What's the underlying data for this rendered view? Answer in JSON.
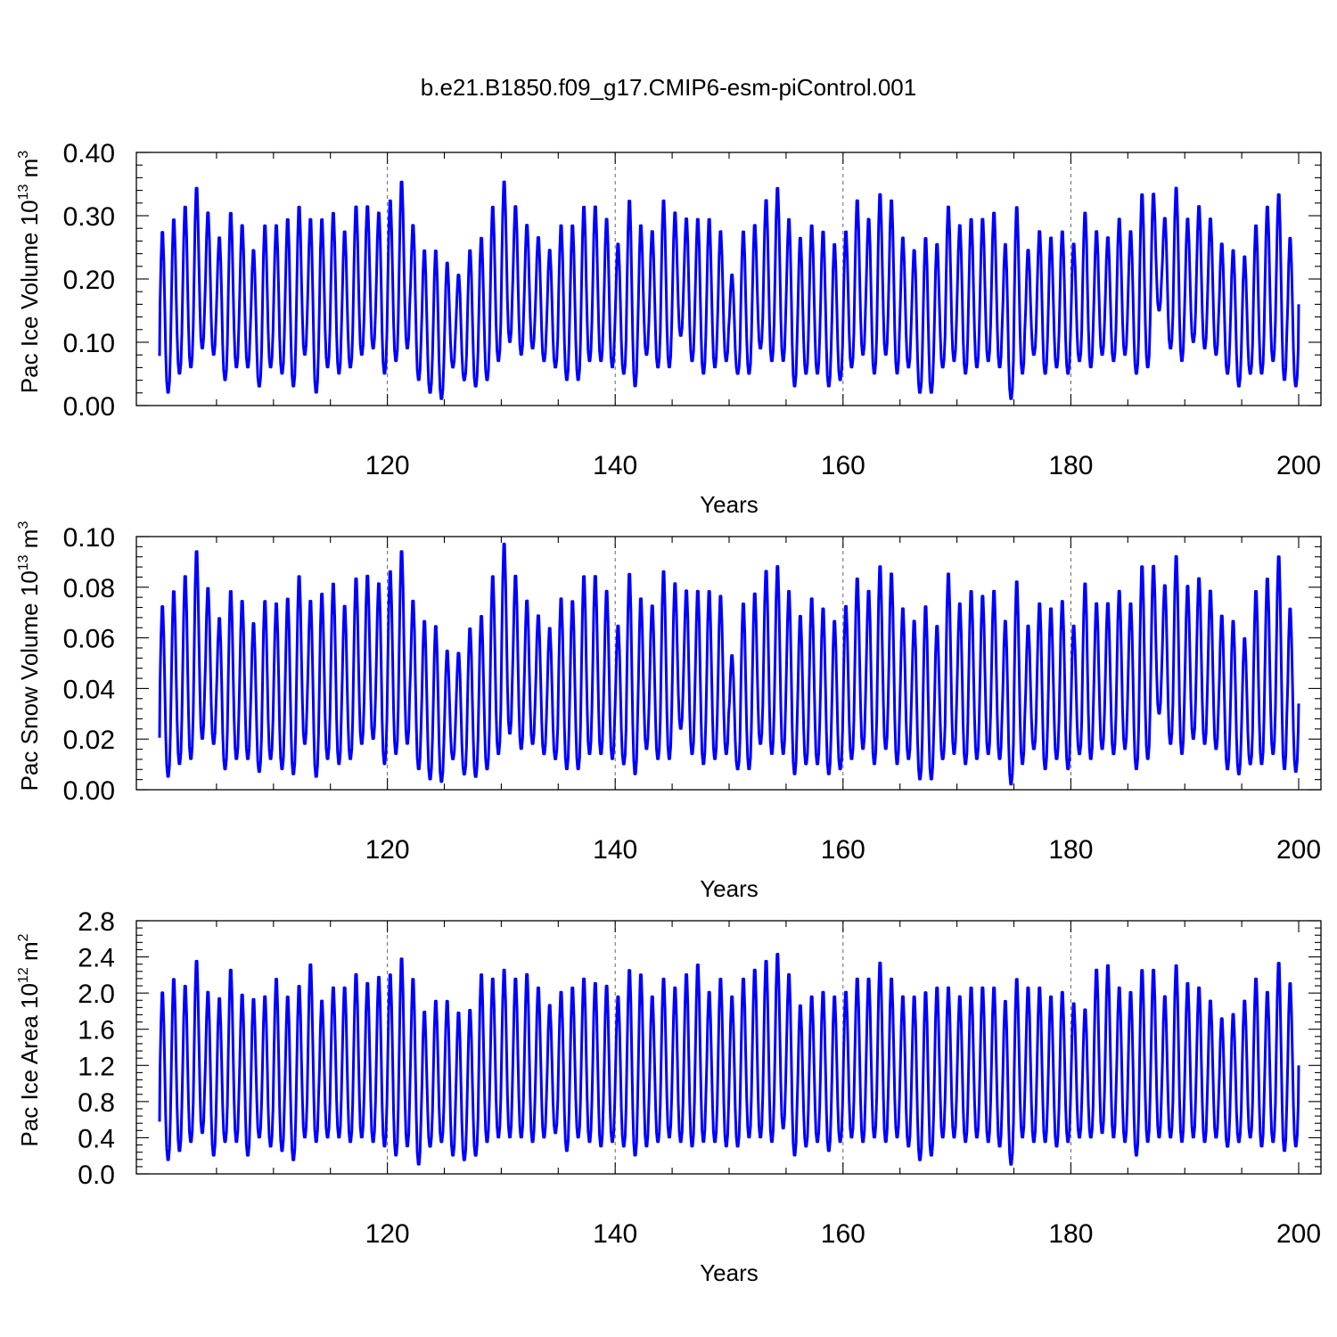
{
  "title": "b.e21.B1850.f09_g17.CMIP6-esm-piControl.001",
  "colors": {
    "series": "#0000ff",
    "grid": "#666666",
    "axis": "#000000"
  },
  "chart_data": [
    {
      "type": "line",
      "ylabel": {
        "prefix": "Pac Ice Volume 10",
        "exp": "13",
        "unit": " m",
        "unit_exp": "3"
      },
      "xlabel": "Years",
      "xlim": [
        100,
        200
      ],
      "ylim": [
        0,
        0.4
      ],
      "yticks": [
        "0.00",
        "0.10",
        "0.20",
        "0.30",
        "0.40"
      ],
      "ytick_values": [
        0,
        0.1,
        0.2,
        0.3,
        0.4
      ],
      "xticks": [
        "120",
        "140",
        "160",
        "180",
        "200"
      ],
      "xtick_values": [
        120,
        140,
        160,
        180,
        200
      ],
      "grid": "dashed vertical at x ticks",
      "series": [
        {
          "x_start": 100,
          "x_end": 200,
          "cycle": "annual",
          "annual_max": [
            0.28,
            0.3,
            0.32,
            0.35,
            0.31,
            0.27,
            0.31,
            0.29,
            0.25,
            0.29,
            0.29,
            0.3,
            0.32,
            0.3,
            0.3,
            0.31,
            0.28,
            0.32,
            0.32,
            0.31,
            0.33,
            0.36,
            0.29,
            0.25,
            0.25,
            0.23,
            0.21,
            0.25,
            0.27,
            0.32,
            0.36,
            0.32,
            0.29,
            0.27,
            0.25,
            0.29,
            0.29,
            0.32,
            0.32,
            0.3,
            0.26,
            0.33,
            0.29,
            0.28,
            0.33,
            0.31,
            0.3,
            0.3,
            0.3,
            0.28,
            0.21,
            0.28,
            0.29,
            0.33,
            0.35,
            0.3,
            0.27,
            0.29,
            0.28,
            0.26,
            0.28,
            0.33,
            0.3,
            0.34,
            0.33,
            0.27,
            0.25,
            0.27,
            0.26,
            0.32,
            0.29,
            0.3,
            0.3,
            0.31,
            0.26,
            0.32,
            0.25,
            0.28,
            0.27,
            0.28,
            0.26,
            0.31,
            0.28,
            0.27,
            0.3,
            0.28,
            0.34,
            0.34,
            0.3,
            0.35,
            0.3,
            0.32,
            0.3,
            0.26,
            0.25,
            0.24,
            0.29,
            0.32,
            0.34,
            0.27
          ],
          "annual_min": [
            0.02,
            0.05,
            0.06,
            0.09,
            0.08,
            0.04,
            0.06,
            0.06,
            0.03,
            0.06,
            0.05,
            0.03,
            0.08,
            0.02,
            0.06,
            0.05,
            0.06,
            0.08,
            0.09,
            0.05,
            0.07,
            0.09,
            0.04,
            0.02,
            0.01,
            0.06,
            0.04,
            0.03,
            0.04,
            0.07,
            0.1,
            0.08,
            0.09,
            0.07,
            0.06,
            0.04,
            0.04,
            0.07,
            0.07,
            0.06,
            0.05,
            0.03,
            0.08,
            0.06,
            0.06,
            0.11,
            0.07,
            0.05,
            0.06,
            0.07,
            0.05,
            0.05,
            0.09,
            0.07,
            0.07,
            0.03,
            0.05,
            0.05,
            0.03,
            0.04,
            0.06,
            0.08,
            0.05,
            0.08,
            0.05,
            0.06,
            0.02,
            0.02,
            0.06,
            0.07,
            0.05,
            0.06,
            0.07,
            0.06,
            0.01,
            0.05,
            0.08,
            0.05,
            0.06,
            0.05,
            0.07,
            0.06,
            0.08,
            0.07,
            0.08,
            0.05,
            0.06,
            0.15,
            0.09,
            0.07,
            0.1,
            0.09,
            0.08,
            0.05,
            0.03,
            0.05,
            0.05,
            0.07,
            0.04,
            0.03
          ],
          "end_value": 0.16
        }
      ]
    },
    {
      "type": "line",
      "ylabel": {
        "prefix": "Pac Snow Volume 10",
        "exp": "13",
        "unit": " m",
        "unit_exp": "3"
      },
      "xlabel": "Years",
      "xlim": [
        100,
        200
      ],
      "ylim": [
        0,
        0.1
      ],
      "yticks": [
        "0.00",
        "0.02",
        "0.04",
        "0.06",
        "0.08",
        "0.10"
      ],
      "ytick_values": [
        0,
        0.02,
        0.04,
        0.06,
        0.08,
        0.1
      ],
      "xticks": [
        "120",
        "140",
        "160",
        "180",
        "200"
      ],
      "xtick_values": [
        120,
        140,
        160,
        180,
        200
      ],
      "grid": "dashed vertical at x ticks",
      "series": [
        {
          "x_start": 100,
          "x_end": 200,
          "cycle": "annual",
          "annual_max": [
            0.074,
            0.08,
            0.086,
            0.096,
            0.081,
            0.069,
            0.08,
            0.076,
            0.067,
            0.076,
            0.075,
            0.077,
            0.086,
            0.076,
            0.079,
            0.083,
            0.074,
            0.085,
            0.086,
            0.083,
            0.088,
            0.096,
            0.076,
            0.068,
            0.066,
            0.056,
            0.055,
            0.065,
            0.07,
            0.086,
            0.099,
            0.086,
            0.076,
            0.07,
            0.065,
            0.077,
            0.076,
            0.086,
            0.086,
            0.08,
            0.066,
            0.087,
            0.077,
            0.074,
            0.088,
            0.083,
            0.08,
            0.08,
            0.08,
            0.078,
            0.054,
            0.075,
            0.079,
            0.088,
            0.09,
            0.08,
            0.07,
            0.077,
            0.073,
            0.068,
            0.074,
            0.085,
            0.08,
            0.09,
            0.087,
            0.073,
            0.068,
            0.074,
            0.066,
            0.087,
            0.075,
            0.08,
            0.078,
            0.08,
            0.068,
            0.084,
            0.066,
            0.075,
            0.073,
            0.076,
            0.066,
            0.083,
            0.075,
            0.075,
            0.08,
            0.075,
            0.09,
            0.09,
            0.082,
            0.094,
            0.082,
            0.085,
            0.08,
            0.07,
            0.068,
            0.061,
            0.08,
            0.085,
            0.094,
            0.073
          ],
          "annual_min": [
            0.005,
            0.01,
            0.012,
            0.02,
            0.018,
            0.008,
            0.012,
            0.012,
            0.007,
            0.012,
            0.008,
            0.006,
            0.018,
            0.005,
            0.012,
            0.01,
            0.012,
            0.018,
            0.02,
            0.01,
            0.014,
            0.018,
            0.008,
            0.004,
            0.003,
            0.012,
            0.006,
            0.005,
            0.008,
            0.014,
            0.022,
            0.016,
            0.018,
            0.014,
            0.012,
            0.008,
            0.008,
            0.014,
            0.014,
            0.012,
            0.01,
            0.006,
            0.016,
            0.012,
            0.012,
            0.024,
            0.014,
            0.01,
            0.012,
            0.014,
            0.008,
            0.008,
            0.018,
            0.014,
            0.014,
            0.006,
            0.01,
            0.01,
            0.006,
            0.008,
            0.012,
            0.016,
            0.01,
            0.016,
            0.01,
            0.012,
            0.004,
            0.004,
            0.012,
            0.014,
            0.01,
            0.012,
            0.014,
            0.012,
            0.002,
            0.01,
            0.016,
            0.008,
            0.012,
            0.008,
            0.014,
            0.012,
            0.016,
            0.014,
            0.016,
            0.008,
            0.012,
            0.03,
            0.018,
            0.014,
            0.02,
            0.018,
            0.016,
            0.008,
            0.006,
            0.01,
            0.01,
            0.014,
            0.008,
            0.007
          ],
          "end_value": 0.034
        }
      ]
    },
    {
      "type": "line",
      "ylabel": {
        "prefix": "Pac Ice Area 10",
        "exp": "12",
        "unit": " m",
        "unit_exp": "2"
      },
      "xlabel": "Years",
      "xlim": [
        100,
        200
      ],
      "ylim": [
        0,
        2.8
      ],
      "yticks": [
        "0.0",
        "0.4",
        "0.8",
        "1.2",
        "1.6",
        "2.0",
        "2.4",
        "2.8"
      ],
      "ytick_values": [
        0,
        0.4,
        0.8,
        1.2,
        1.6,
        2.0,
        2.4,
        2.8
      ],
      "xticks": [
        "120",
        "140",
        "160",
        "180",
        "200"
      ],
      "xtick_values": [
        120,
        140,
        160,
        180,
        200
      ],
      "grid": "dashed vertical at x ticks",
      "series": [
        {
          "x_start": 100,
          "x_end": 200,
          "cycle": "annual",
          "annual_max": [
            2.05,
            2.2,
            2.12,
            2.4,
            2.05,
            1.98,
            2.3,
            2.02,
            1.97,
            2.0,
            2.2,
            2.0,
            2.12,
            2.36,
            1.95,
            2.1,
            2.1,
            2.25,
            2.15,
            2.22,
            2.25,
            2.43,
            2.2,
            1.83,
            1.95,
            1.95,
            1.82,
            1.85,
            2.25,
            2.2,
            2.3,
            2.2,
            2.25,
            2.1,
            1.9,
            2.05,
            2.1,
            2.2,
            2.15,
            2.12,
            2.0,
            2.3,
            2.25,
            2.0,
            2.2,
            2.1,
            2.25,
            2.36,
            2.05,
            2.2,
            2.0,
            2.2,
            2.3,
            2.4,
            2.48,
            2.25,
            1.9,
            2.0,
            2.05,
            2.0,
            2.05,
            2.2,
            2.2,
            2.38,
            2.2,
            2.0,
            2.0,
            2.05,
            2.1,
            2.1,
            2.0,
            2.1,
            2.1,
            2.1,
            1.95,
            2.2,
            2.1,
            2.1,
            2.0,
            2.05,
            1.92,
            1.85,
            2.3,
            2.35,
            2.1,
            2.05,
            2.3,
            2.3,
            2.0,
            2.35,
            2.15,
            2.1,
            1.95,
            1.75,
            1.8,
            1.95,
            2.2,
            2.05,
            2.38,
            2.15
          ],
          "annual_min": [
            0.15,
            0.25,
            0.35,
            0.45,
            0.2,
            0.35,
            0.35,
            0.2,
            0.4,
            0.3,
            0.25,
            0.15,
            0.4,
            0.35,
            0.4,
            0.4,
            0.35,
            0.4,
            0.35,
            0.3,
            0.2,
            0.3,
            0.1,
            0.3,
            0.35,
            0.2,
            0.15,
            0.2,
            0.35,
            0.4,
            0.4,
            0.4,
            0.35,
            0.4,
            0.45,
            0.25,
            0.4,
            0.35,
            0.3,
            0.35,
            0.3,
            0.2,
            0.3,
            0.35,
            0.4,
            0.35,
            0.3,
            0.35,
            0.35,
            0.3,
            0.3,
            0.4,
            0.4,
            0.35,
            0.5,
            0.2,
            0.3,
            0.35,
            0.25,
            0.35,
            0.4,
            0.35,
            0.4,
            0.35,
            0.4,
            0.3,
            0.15,
            0.2,
            0.4,
            0.4,
            0.35,
            0.4,
            0.35,
            0.3,
            0.1,
            0.4,
            0.35,
            0.35,
            0.3,
            0.35,
            0.4,
            0.4,
            0.45,
            0.4,
            0.35,
            0.2,
            0.35,
            0.4,
            0.4,
            0.35,
            0.4,
            0.35,
            0.4,
            0.3,
            0.35,
            0.4,
            0.3,
            0.35,
            0.25,
            0.3
          ],
          "end_value": 1.2
        }
      ]
    }
  ]
}
